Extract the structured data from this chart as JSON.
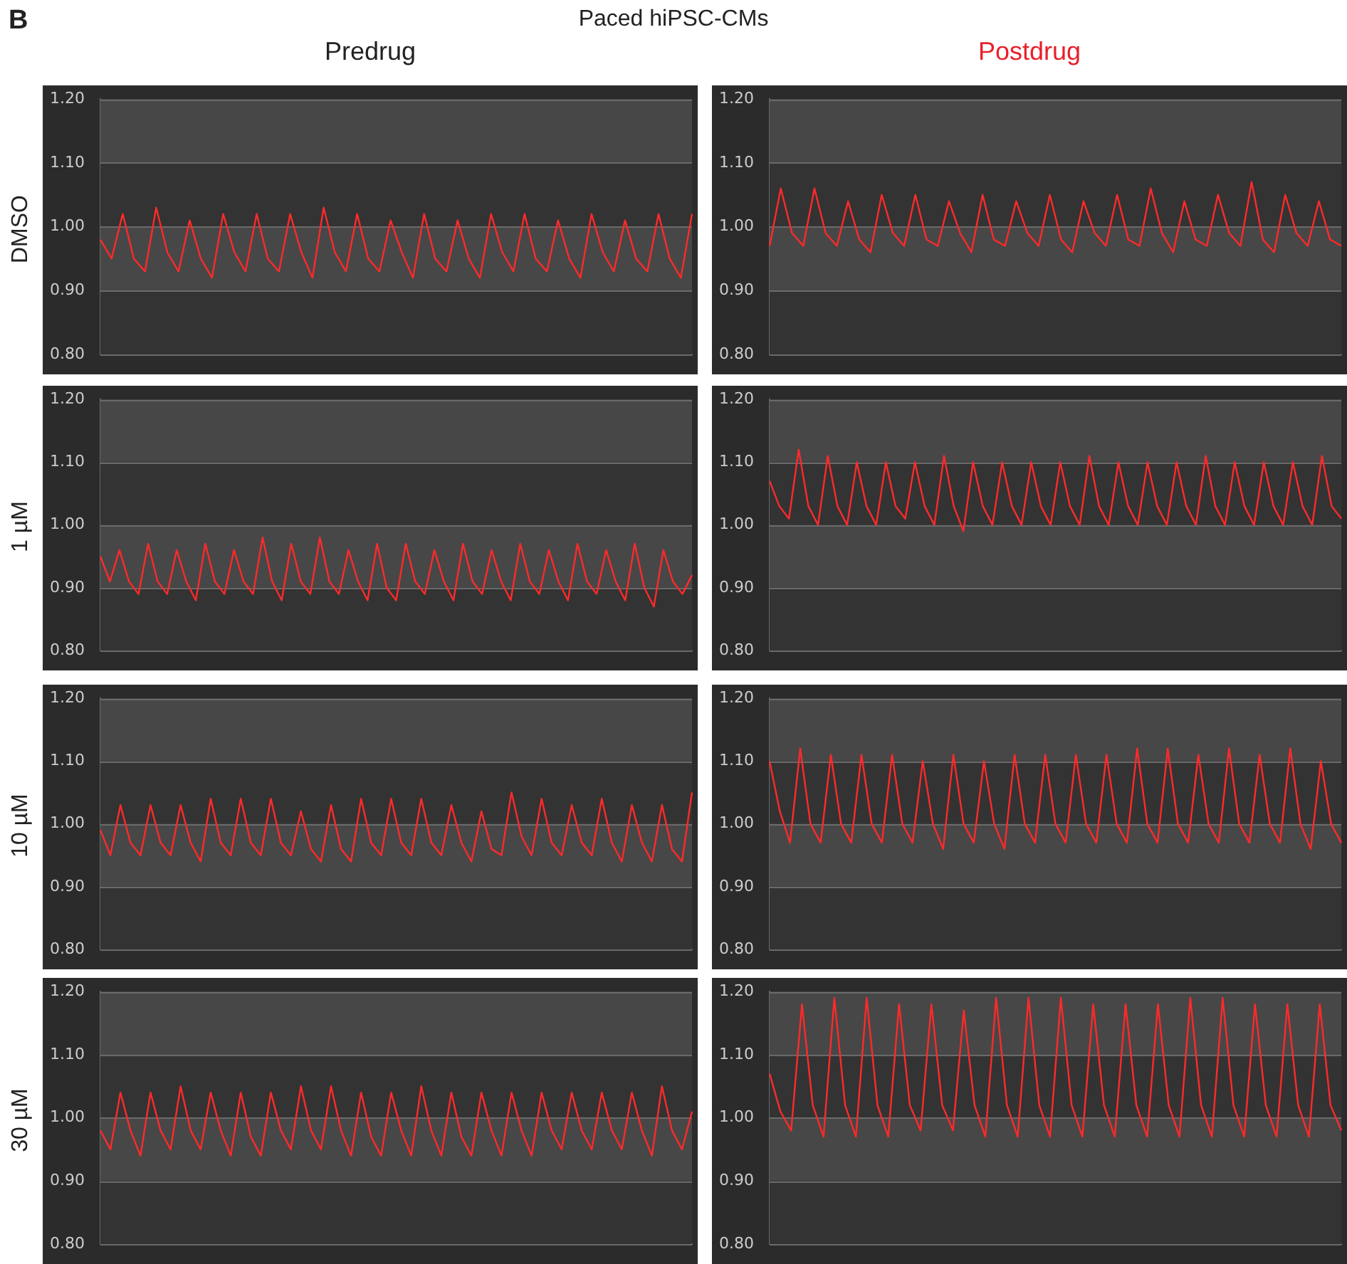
{
  "chart_data": [
    {
      "type": "line",
      "title": "Predrug",
      "ylabel": "DMSO",
      "annotations": [
        "B",
        "Paced hiPSC-CMs"
      ],
      "categories": [
        null,
        null,
        null,
        null,
        null,
        null,
        null,
        null,
        null,
        null,
        null,
        null,
        null,
        null,
        null,
        null,
        null,
        null,
        null,
        null,
        null,
        null,
        null,
        null,
        null,
        null,
        null,
        null,
        null,
        null,
        null,
        null,
        null,
        null,
        null,
        null,
        null,
        null,
        null,
        null,
        null,
        null,
        null,
        null,
        null,
        null,
        null,
        null,
        null,
        null,
        null,
        null,
        null,
        null
      ],
      "series": [
        {
          "color": "#ff2a2a",
          "values": [
            0.98,
            0.95,
            1.02,
            0.95,
            0.93,
            1.03,
            0.96,
            0.93,
            1.01,
            0.95,
            0.92,
            1.02,
            0.96,
            0.93,
            1.02,
            0.95,
            0.93,
            1.02,
            0.96,
            0.92,
            1.03,
            0.96,
            0.93,
            1.02,
            0.95,
            0.93,
            1.01,
            0.96,
            0.92,
            1.02,
            0.95,
            0.93,
            1.01,
            0.95,
            0.92,
            1.02,
            0.96,
            0.93,
            1.02,
            0.95,
            0.93,
            1.01,
            0.95,
            0.92,
            1.02,
            0.96,
            0.93,
            1.01,
            0.95,
            0.93,
            1.02,
            0.95,
            0.92,
            1.02
          ]
        }
      ],
      "ylim": [
        0.8,
        1.2
      ],
      "yticks": [
        {
          "value": 0.8,
          "label": "0.80"
        },
        {
          "value": 0.9,
          "label": "0.90"
        },
        {
          "value": 1.0,
          "label": "1.00"
        },
        {
          "value": 1.1,
          "label": "1.10"
        },
        {
          "value": 1.2,
          "label": "1.20"
        }
      ],
      "bands": [
        {
          "axis": "y",
          "from": 1.1,
          "to": 1.2,
          "color": "#474747"
        },
        {
          "axis": "y",
          "from": 0.9,
          "to": 1.0,
          "color": "#474747"
        }
      ],
      "grid": "y",
      "tick_labels": "y",
      "legend": false,
      "marker": "none",
      "line_style": "solid"
    },
    {
      "type": "line",
      "title": "Postdrug",
      "categories": [
        null,
        null,
        null,
        null,
        null,
        null,
        null,
        null,
        null,
        null,
        null,
        null,
        null,
        null,
        null,
        null,
        null,
        null,
        null,
        null,
        null,
        null,
        null,
        null,
        null,
        null,
        null,
        null,
        null,
        null,
        null,
        null,
        null,
        null,
        null,
        null,
        null,
        null,
        null,
        null,
        null,
        null,
        null,
        null,
        null,
        null,
        null,
        null,
        null,
        null,
        null,
        null
      ],
      "series": [
        {
          "color": "#ff2a2a",
          "values": [
            0.97,
            1.06,
            0.99,
            0.97,
            1.06,
            0.99,
            0.97,
            1.04,
            0.98,
            0.96,
            1.05,
            0.99,
            0.97,
            1.05,
            0.98,
            0.97,
            1.04,
            0.99,
            0.96,
            1.05,
            0.98,
            0.97,
            1.04,
            0.99,
            0.97,
            1.05,
            0.98,
            0.96,
            1.04,
            0.99,
            0.97,
            1.05,
            0.98,
            0.97,
            1.06,
            0.99,
            0.96,
            1.04,
            0.98,
            0.97,
            1.05,
            0.99,
            0.97,
            1.07,
            0.98,
            0.96,
            1.05,
            0.99,
            0.97,
            1.04,
            0.98,
            0.97
          ]
        }
      ],
      "ylim": [
        0.8,
        1.2
      ],
      "yticks": [
        {
          "value": 0.8,
          "label": "0.80"
        },
        {
          "value": 0.9,
          "label": "0.90"
        },
        {
          "value": 1.0,
          "label": "1.00"
        },
        {
          "value": 1.1,
          "label": "1.10"
        },
        {
          "value": 1.2,
          "label": "1.20"
        }
      ],
      "bands": [
        {
          "axis": "y",
          "from": 1.1,
          "to": 1.2,
          "color": "#474747"
        },
        {
          "axis": "y",
          "from": 0.9,
          "to": 1.0,
          "color": "#474747"
        }
      ],
      "grid": "y",
      "tick_labels": "y",
      "legend": false,
      "marker": "none",
      "line_style": "solid"
    },
    {
      "type": "line",
      "ylabel": "1 µM",
      "categories": [
        null,
        null,
        null,
        null,
        null,
        null,
        null,
        null,
        null,
        null,
        null,
        null,
        null,
        null,
        null,
        null,
        null,
        null,
        null,
        null,
        null,
        null,
        null,
        null,
        null,
        null,
        null,
        null,
        null,
        null,
        null,
        null,
        null,
        null,
        null,
        null,
        null,
        null,
        null,
        null,
        null,
        null,
        null,
        null,
        null,
        null,
        null,
        null,
        null,
        null,
        null,
        null,
        null,
        null,
        null,
        null,
        null,
        null,
        null,
        null,
        null,
        null,
        null
      ],
      "series": [
        {
          "color": "#ff2a2a",
          "values": [
            0.95,
            0.91,
            0.96,
            0.91,
            0.89,
            0.97,
            0.91,
            0.89,
            0.96,
            0.91,
            0.88,
            0.97,
            0.91,
            0.89,
            0.96,
            0.91,
            0.89,
            0.98,
            0.91,
            0.88,
            0.97,
            0.91,
            0.89,
            0.98,
            0.91,
            0.89,
            0.96,
            0.91,
            0.88,
            0.97,
            0.9,
            0.88,
            0.97,
            0.91,
            0.89,
            0.96,
            0.91,
            0.88,
            0.97,
            0.91,
            0.89,
            0.96,
            0.91,
            0.88,
            0.97,
            0.91,
            0.89,
            0.96,
            0.91,
            0.88,
            0.97,
            0.91,
            0.89,
            0.96,
            0.91,
            0.88,
            0.97,
            0.9,
            0.87,
            0.96,
            0.91,
            0.89,
            0.92
          ]
        }
      ],
      "ylim": [
        0.8,
        1.2
      ],
      "yticks": [
        {
          "value": 0.8,
          "label": "0.80"
        },
        {
          "value": 0.9,
          "label": "0.90"
        },
        {
          "value": 1.0,
          "label": "1.00"
        },
        {
          "value": 1.1,
          "label": "1.10"
        },
        {
          "value": 1.2,
          "label": "1.20"
        }
      ],
      "bands": [
        {
          "axis": "y",
          "from": 1.1,
          "to": 1.2,
          "color": "#474747"
        },
        {
          "axis": "y",
          "from": 0.9,
          "to": 1.0,
          "color": "#474747"
        }
      ],
      "grid": "y",
      "tick_labels": "y",
      "legend": false,
      "marker": "none",
      "line_style": "solid"
    },
    {
      "type": "line",
      "categories": [
        null,
        null,
        null,
        null,
        null,
        null,
        null,
        null,
        null,
        null,
        null,
        null,
        null,
        null,
        null,
        null,
        null,
        null,
        null,
        null,
        null,
        null,
        null,
        null,
        null,
        null,
        null,
        null,
        null,
        null,
        null,
        null,
        null,
        null,
        null,
        null,
        null,
        null,
        null,
        null,
        null,
        null,
        null,
        null,
        null,
        null,
        null,
        null,
        null,
        null,
        null,
        null,
        null,
        null,
        null,
        null,
        null,
        null,
        null,
        null
      ],
      "series": [
        {
          "color": "#ff2a2a",
          "values": [
            1.07,
            1.03,
            1.01,
            1.12,
            1.03,
            1.0,
            1.11,
            1.03,
            1.0,
            1.1,
            1.03,
            1.0,
            1.1,
            1.03,
            1.01,
            1.1,
            1.03,
            1.0,
            1.11,
            1.03,
            0.99,
            1.1,
            1.03,
            1.0,
            1.1,
            1.03,
            1.0,
            1.1,
            1.03,
            1.0,
            1.1,
            1.03,
            1.0,
            1.11,
            1.03,
            1.0,
            1.1,
            1.03,
            1.0,
            1.1,
            1.03,
            1.0,
            1.1,
            1.03,
            1.0,
            1.11,
            1.03,
            1.0,
            1.1,
            1.03,
            1.0,
            1.1,
            1.03,
            1.0,
            1.1,
            1.03,
            1.0,
            1.11,
            1.03,
            1.01
          ]
        }
      ],
      "ylim": [
        0.8,
        1.2
      ],
      "yticks": [
        {
          "value": 0.8,
          "label": "0.80"
        },
        {
          "value": 0.9,
          "label": "0.90"
        },
        {
          "value": 1.0,
          "label": "1.00"
        },
        {
          "value": 1.1,
          "label": "1.10"
        },
        {
          "value": 1.2,
          "label": "1.20"
        }
      ],
      "bands": [
        {
          "axis": "y",
          "from": 1.1,
          "to": 1.2,
          "color": "#474747"
        },
        {
          "axis": "y",
          "from": 0.9,
          "to": 1.0,
          "color": "#474747"
        }
      ],
      "grid": "y",
      "tick_labels": "y",
      "legend": false,
      "marker": "none",
      "line_style": "solid"
    },
    {
      "type": "line",
      "ylabel": "10 µM",
      "categories": [
        null,
        null,
        null,
        null,
        null,
        null,
        null,
        null,
        null,
        null,
        null,
        null,
        null,
        null,
        null,
        null,
        null,
        null,
        null,
        null,
        null,
        null,
        null,
        null,
        null,
        null,
        null,
        null,
        null,
        null,
        null,
        null,
        null,
        null,
        null,
        null,
        null,
        null,
        null,
        null,
        null,
        null,
        null,
        null,
        null,
        null,
        null,
        null,
        null,
        null,
        null,
        null,
        null,
        null,
        null,
        null,
        null,
        null,
        null,
        null
      ],
      "series": [
        {
          "color": "#ff2a2a",
          "values": [
            0.99,
            0.95,
            1.03,
            0.97,
            0.95,
            1.03,
            0.97,
            0.95,
            1.03,
            0.97,
            0.94,
            1.04,
            0.97,
            0.95,
            1.04,
            0.97,
            0.95,
            1.04,
            0.97,
            0.95,
            1.02,
            0.96,
            0.94,
            1.03,
            0.96,
            0.94,
            1.04,
            0.97,
            0.95,
            1.04,
            0.97,
            0.95,
            1.04,
            0.97,
            0.95,
            1.03,
            0.97,
            0.94,
            1.02,
            0.96,
            0.95,
            1.05,
            0.98,
            0.95,
            1.04,
            0.97,
            0.95,
            1.03,
            0.97,
            0.95,
            1.04,
            0.97,
            0.94,
            1.03,
            0.97,
            0.94,
            1.03,
            0.96,
            0.94,
            1.05
          ]
        }
      ],
      "ylim": [
        0.8,
        1.2
      ],
      "yticks": [
        {
          "value": 0.8,
          "label": "0.80"
        },
        {
          "value": 0.9,
          "label": "0.90"
        },
        {
          "value": 1.0,
          "label": "1.00"
        },
        {
          "value": 1.1,
          "label": "1.10"
        },
        {
          "value": 1.2,
          "label": "1.20"
        }
      ],
      "bands": [
        {
          "axis": "y",
          "from": 1.1,
          "to": 1.2,
          "color": "#474747"
        },
        {
          "axis": "y",
          "from": 0.9,
          "to": 1.0,
          "color": "#474747"
        }
      ],
      "grid": "y",
      "tick_labels": "y",
      "legend": false,
      "marker": "none",
      "line_style": "solid"
    },
    {
      "type": "line",
      "categories": [
        null,
        null,
        null,
        null,
        null,
        null,
        null,
        null,
        null,
        null,
        null,
        null,
        null,
        null,
        null,
        null,
        null,
        null,
        null,
        null,
        null,
        null,
        null,
        null,
        null,
        null,
        null,
        null,
        null,
        null,
        null,
        null,
        null,
        null,
        null,
        null,
        null,
        null,
        null,
        null,
        null,
        null,
        null,
        null,
        null,
        null,
        null,
        null,
        null,
        null,
        null,
        null,
        null,
        null,
        null,
        null,
        null
      ],
      "series": [
        {
          "color": "#ff2a2a",
          "values": [
            1.1,
            1.02,
            0.97,
            1.12,
            1.0,
            0.97,
            1.11,
            1.0,
            0.97,
            1.11,
            1.0,
            0.97,
            1.11,
            1.0,
            0.97,
            1.1,
            1.0,
            0.96,
            1.11,
            1.0,
            0.97,
            1.1,
            1.0,
            0.96,
            1.11,
            1.0,
            0.97,
            1.11,
            1.0,
            0.97,
            1.11,
            1.0,
            0.97,
            1.11,
            1.0,
            0.97,
            1.12,
            1.0,
            0.97,
            1.12,
            1.0,
            0.97,
            1.11,
            1.0,
            0.97,
            1.12,
            1.0,
            0.97,
            1.11,
            1.0,
            0.97,
            1.12,
            1.0,
            0.96,
            1.1,
            1.0,
            0.97
          ]
        }
      ],
      "ylim": [
        0.8,
        1.2
      ],
      "yticks": [
        {
          "value": 0.8,
          "label": "0.80"
        },
        {
          "value": 0.9,
          "label": "0.90"
        },
        {
          "value": 1.0,
          "label": "1.00"
        },
        {
          "value": 1.1,
          "label": "1.10"
        },
        {
          "value": 1.2,
          "label": "1.20"
        }
      ],
      "bands": [
        {
          "axis": "y",
          "from": 1.1,
          "to": 1.2,
          "color": "#474747"
        },
        {
          "axis": "y",
          "from": 0.9,
          "to": 1.0,
          "color": "#474747"
        }
      ],
      "grid": "y",
      "tick_labels": "y",
      "legend": false,
      "marker": "none",
      "line_style": "solid"
    },
    {
      "type": "line",
      "ylabel": "30 µM",
      "categories": [
        null,
        null,
        null,
        null,
        null,
        null,
        null,
        null,
        null,
        null,
        null,
        null,
        null,
        null,
        null,
        null,
        null,
        null,
        null,
        null,
        null,
        null,
        null,
        null,
        null,
        null,
        null,
        null,
        null,
        null,
        null,
        null,
        null,
        null,
        null,
        null,
        null,
        null,
        null,
        null,
        null,
        null,
        null,
        null,
        null,
        null,
        null,
        null,
        null,
        null,
        null,
        null,
        null,
        null,
        null,
        null,
        null,
        null,
        null,
        null
      ],
      "series": [
        {
          "color": "#ff2a2a",
          "values": [
            0.98,
            0.95,
            1.04,
            0.98,
            0.94,
            1.04,
            0.98,
            0.95,
            1.05,
            0.98,
            0.95,
            1.04,
            0.98,
            0.94,
            1.04,
            0.97,
            0.94,
            1.04,
            0.98,
            0.95,
            1.05,
            0.98,
            0.95,
            1.05,
            0.98,
            0.94,
            1.04,
            0.97,
            0.94,
            1.04,
            0.98,
            0.94,
            1.05,
            0.98,
            0.94,
            1.04,
            0.97,
            0.94,
            1.04,
            0.98,
            0.94,
            1.04,
            0.98,
            0.94,
            1.04,
            0.98,
            0.95,
            1.04,
            0.98,
            0.95,
            1.04,
            0.98,
            0.95,
            1.04,
            0.98,
            0.94,
            1.05,
            0.98,
            0.95,
            1.01
          ]
        }
      ],
      "ylim": [
        0.8,
        1.2
      ],
      "yticks": [
        {
          "value": 0.8,
          "label": "0.80"
        },
        {
          "value": 0.9,
          "label": "0.90"
        },
        {
          "value": 1.0,
          "label": "1.00"
        },
        {
          "value": 1.1,
          "label": "1.10"
        },
        {
          "value": 1.2,
          "label": "1.20"
        }
      ],
      "bands": [
        {
          "axis": "y",
          "from": 1.1,
          "to": 1.2,
          "color": "#474747"
        },
        {
          "axis": "y",
          "from": 0.9,
          "to": 1.0,
          "color": "#474747"
        }
      ],
      "grid": "y",
      "tick_labels": "y",
      "legend": false,
      "marker": "none",
      "line_style": "solid"
    },
    {
      "type": "line",
      "categories": [
        null,
        null,
        null,
        null,
        null,
        null,
        null,
        null,
        null,
        null,
        null,
        null,
        null,
        null,
        null,
        null,
        null,
        null,
        null,
        null,
        null,
        null,
        null,
        null,
        null,
        null,
        null,
        null,
        null,
        null,
        null,
        null,
        null,
        null,
        null,
        null,
        null,
        null,
        null,
        null,
        null,
        null,
        null,
        null,
        null,
        null,
        null,
        null,
        null,
        null,
        null,
        null,
        null,
        null
      ],
      "series": [
        {
          "color": "#ff2a2a",
          "values": [
            1.07,
            1.01,
            0.98,
            1.18,
            1.02,
            0.97,
            1.19,
            1.02,
            0.97,
            1.19,
            1.02,
            0.97,
            1.18,
            1.02,
            0.98,
            1.18,
            1.02,
            0.98,
            1.17,
            1.02,
            0.97,
            1.19,
            1.02,
            0.97,
            1.19,
            1.02,
            0.97,
            1.19,
            1.02,
            0.97,
            1.18,
            1.02,
            0.97,
            1.18,
            1.02,
            0.97,
            1.18,
            1.02,
            0.97,
            1.19,
            1.02,
            0.97,
            1.19,
            1.02,
            0.97,
            1.18,
            1.02,
            0.97,
            1.18,
            1.02,
            0.97,
            1.18,
            1.02,
            0.98
          ]
        }
      ],
      "ylim": [
        0.8,
        1.2
      ],
      "yticks": [
        {
          "value": 0.8,
          "label": "0.80"
        },
        {
          "value": 0.9,
          "label": "0.90"
        },
        {
          "value": 1.0,
          "label": "1.00"
        },
        {
          "value": 1.1,
          "label": "1.10"
        },
        {
          "value": 1.2,
          "label": "1.20"
        }
      ],
      "bands": [
        {
          "axis": "y",
          "from": 1.1,
          "to": 1.2,
          "color": "#474747"
        },
        {
          "axis": "y",
          "from": 0.9,
          "to": 1.0,
          "color": "#474747"
        }
      ],
      "grid": "y",
      "tick_labels": "y",
      "legend": false,
      "marker": "none",
      "line_style": "solid"
    }
  ]
}
